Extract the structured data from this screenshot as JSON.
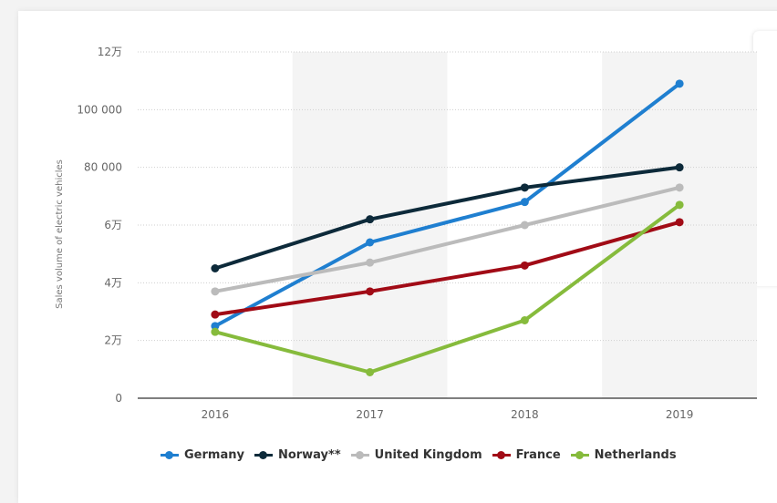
{
  "chart_data": {
    "type": "line",
    "title": "",
    "xlabel": "",
    "ylabel": "Sales volume of electric vehicles",
    "categories": [
      "2016",
      "2017",
      "2018",
      "2019"
    ],
    "ylim": [
      0,
      120000
    ],
    "yticks": [
      {
        "value": 0,
        "label": "0"
      },
      {
        "value": 20000,
        "label": "2万"
      },
      {
        "value": 40000,
        "label": "4万"
      },
      {
        "value": 60000,
        "label": "6万"
      },
      {
        "value": 80000,
        "label": "80 000"
      },
      {
        "value": 100000,
        "label": "100 000"
      },
      {
        "value": 120000,
        "label": "12万"
      }
    ],
    "grid": true,
    "legend_position": "bottom",
    "series": [
      {
        "name": "Germany",
        "color": "#1f7fd0",
        "values": [
          25000,
          54000,
          68000,
          109000
        ]
      },
      {
        "name": "Norway**",
        "color": "#0d2a3a",
        "values": [
          45000,
          62000,
          73000,
          80000
        ]
      },
      {
        "name": "United Kingdom",
        "color": "#bbbbbb",
        "values": [
          37000,
          47000,
          60000,
          73000
        ]
      },
      {
        "name": "France",
        "color": "#a10b16",
        "values": [
          29000,
          37000,
          46000,
          61000
        ]
      },
      {
        "name": "Netherlands",
        "color": "#86bb3c",
        "values": [
          23000,
          9000,
          27000,
          67000
        ]
      }
    ]
  }
}
